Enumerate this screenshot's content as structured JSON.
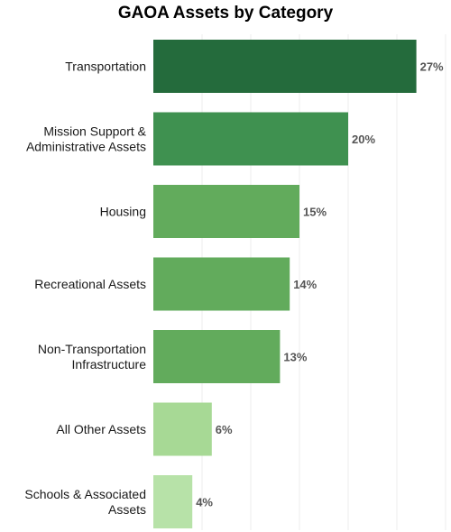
{
  "chart_data": {
    "type": "bar",
    "orientation": "horizontal",
    "title": "GAOA Assets by Category",
    "categories": [
      [
        "Transportation"
      ],
      [
        "Mission Support &",
        "Administrative Assets"
      ],
      [
        "Housing"
      ],
      [
        "Recreational Assets"
      ],
      [
        "Non-Transportation",
        "Infrastructure"
      ],
      [
        "All Other Assets"
      ],
      [
        "Schools & Associated",
        "Assets"
      ]
    ],
    "values": [
      27,
      20,
      15,
      14,
      13,
      6,
      4
    ],
    "value_labels": [
      "27%",
      "20%",
      "15%",
      "14%",
      "13%",
      "6%",
      "4%"
    ],
    "colors": [
      "#246b3c",
      "#3f9150",
      "#62ab5c",
      "#62ab5c",
      "#62ab5c",
      "#a7d995",
      "#b7e2a8"
    ],
    "xlim": [
      0,
      30
    ],
    "grid": true,
    "legend": "none"
  }
}
